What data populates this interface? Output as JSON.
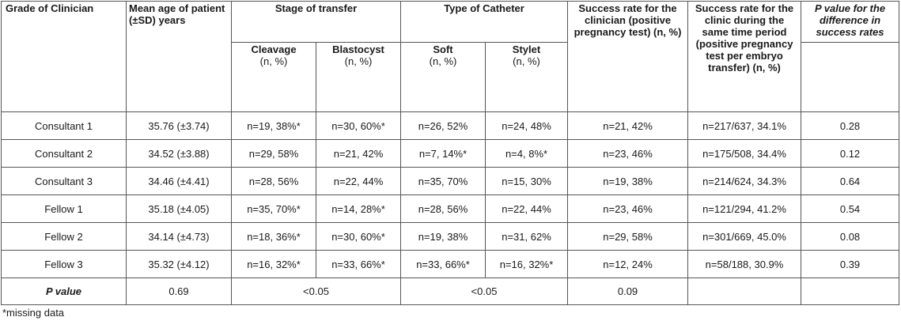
{
  "table": {
    "headers": {
      "grade": "Grade of Clinician",
      "mean_age": "Mean age of patient (±SD) years",
      "stage": "Stage of transfer",
      "catheter": "Type of Catheter",
      "success_clinician": "Success rate for the clinician (positive pregnancy test) (n, %)",
      "success_clinic": "Success rate for the clinic during the same time period (positive pregnancy test per embryo transfer) (n, %)",
      "p_value_diff": "P value for the difference in success rates"
    },
    "subheaders": {
      "cleavage": "Cleavage",
      "blastocyst": "Blastocyst",
      "soft": "Soft",
      "stylet": "Stylet",
      "unit": "(n, %)"
    },
    "rows": [
      {
        "grade": "Consultant 1",
        "age": "35.76 (±3.74)",
        "cleavage": "n=19, 38%*",
        "blastocyst": "n=30, 60%*",
        "soft": "n=26, 52%",
        "stylet": "n=24, 48%",
        "clinician": "n=21, 42%",
        "clinic": "n=217/637, 34.1%",
        "p": "0.28"
      },
      {
        "grade": "Consultant 2",
        "age": "34.52 (±3.88)",
        "cleavage": "n=29, 58%",
        "blastocyst": "n=21, 42%",
        "soft": "n=7, 14%*",
        "stylet": "n=4, 8%*",
        "clinician": "n=23, 46%",
        "clinic": "n=175/508, 34.4%",
        "p": "0.12"
      },
      {
        "grade": "Consultant 3",
        "age": "34.46 (±4.41)",
        "cleavage": "n=28, 56%",
        "blastocyst": "n=22, 44%",
        "soft": "n=35, 70%",
        "stylet": "n=15, 30%",
        "clinician": "n=19, 38%",
        "clinic": "n=214/624, 34.3%",
        "p": "0.64"
      },
      {
        "grade": "Fellow 1",
        "age": "35.18 (±4.05)",
        "cleavage": "n=35, 70%*",
        "blastocyst": "n=14, 28%*",
        "soft": "n=28, 56%",
        "stylet": "n=22, 44%",
        "clinician": "n=23, 46%",
        "clinic": "n=121/294, 41.2%",
        "p": "0.54"
      },
      {
        "grade": "Fellow 2",
        "age": "34.14 (±4.73)",
        "cleavage": "n=18, 36%*",
        "blastocyst": "n=30, 60%*",
        "soft": "n=19, 38%",
        "stylet": "n=31, 62%",
        "clinician": "n=29, 58%",
        "clinic": "n=301/669, 45.0%",
        "p": "0.08"
      },
      {
        "grade": "Fellow 3",
        "age": "35.32 (±4.12)",
        "cleavage": "n=16, 32%*",
        "blastocyst": "n=33, 66%*",
        "soft": "n=33, 66%*",
        "stylet": "n=16, 32%*",
        "clinician": "n=12, 24%",
        "clinic": "n=58/188, 30.9%",
        "p": "0.39"
      }
    ],
    "p_row": {
      "label": "P value",
      "age": "0.69",
      "stage": "<0.05",
      "catheter": "<0.05",
      "clinician": "0.09"
    }
  },
  "footnote": "*missing data"
}
